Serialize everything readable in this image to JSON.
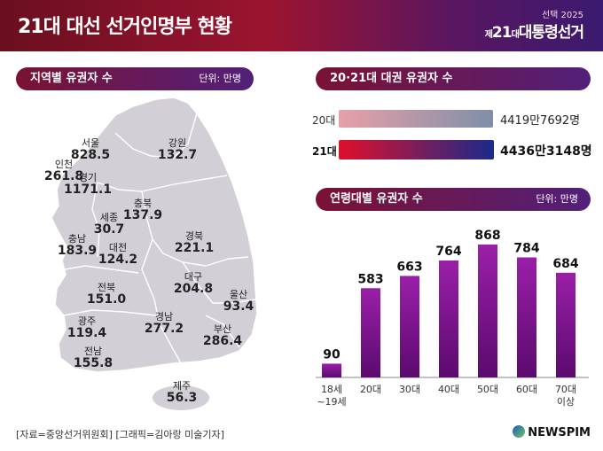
{
  "header": {
    "title": "21대 대선 선거인명부 현황",
    "brand_top": "선택 2025",
    "brand_prefix": "제",
    "brand_num": "21",
    "brand_unit": "대",
    "brand_name": "대통령선거"
  },
  "regional": {
    "title": "지역별 유권자 수",
    "unit": "단위: 만명",
    "regions": [
      {
        "name": "서울",
        "value": "828.5"
      },
      {
        "name": "인천",
        "value": "261.8"
      },
      {
        "name": "경기",
        "value": "1171.1"
      },
      {
        "name": "강원",
        "value": "132.7"
      },
      {
        "name": "충북",
        "value": "137.9"
      },
      {
        "name": "세종",
        "value": "30.7"
      },
      {
        "name": "충남",
        "value": "183.9"
      },
      {
        "name": "대전",
        "value": "124.2"
      },
      {
        "name": "경북",
        "value": "221.1"
      },
      {
        "name": "대구",
        "value": "204.8"
      },
      {
        "name": "전북",
        "value": "151.0"
      },
      {
        "name": "울산",
        "value": "93.4"
      },
      {
        "name": "광주",
        "value": "119.4"
      },
      {
        "name": "경남",
        "value": "277.2"
      },
      {
        "name": "부산",
        "value": "286.4"
      },
      {
        "name": "전남",
        "value": "155.8"
      },
      {
        "name": "제주",
        "value": "56.3"
      }
    ]
  },
  "comparison": {
    "title": "20·21대 대권 유권자 수",
    "rows": [
      {
        "label": "20대",
        "value_text": "4419만7692명",
        "value": 44197692
      },
      {
        "label": "21대",
        "value_text": "4436만3148명",
        "value": 44363148
      }
    ]
  },
  "age_title": "연령대별 유권자 수",
  "age_unit": "단위: 만명",
  "chart_data": {
    "type": "bar",
    "categories": [
      "18세\n~19세",
      "20대",
      "30대",
      "40대",
      "50대",
      "60대",
      "70대\n이상"
    ],
    "values": [
      90,
      583,
      663,
      764,
      868,
      784,
      684
    ],
    "ylim": [
      0,
      868
    ],
    "colors": {
      "bar_top": "#9a1fa8",
      "bar_bottom": "#5b0a6e"
    }
  },
  "footer": {
    "source": "[자료=중앙선거위원회] [그래픽=김아랑 미술기자]",
    "logo": "NEWSPIM"
  }
}
